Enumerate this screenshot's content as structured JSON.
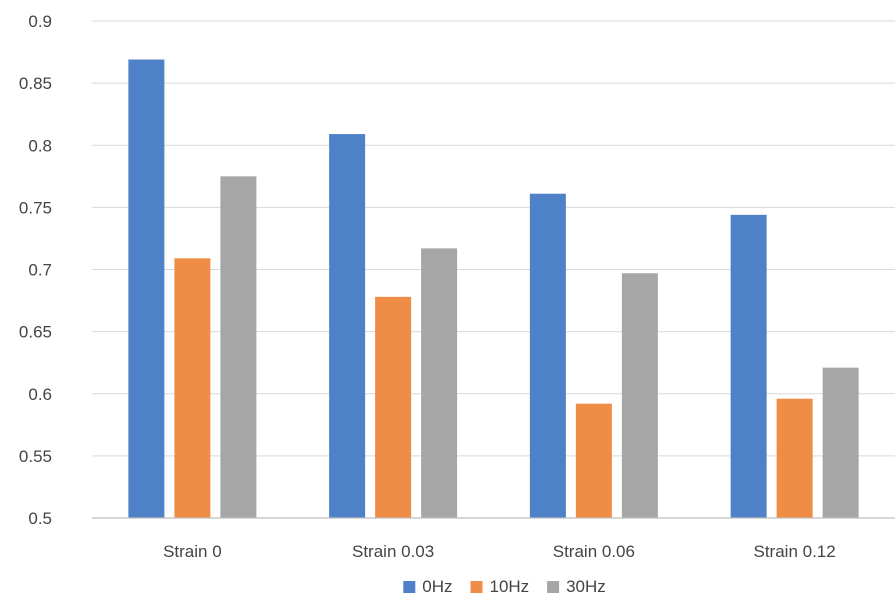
{
  "chart_data": {
    "type": "bar",
    "title": "",
    "xlabel": "",
    "ylabel": "",
    "categories": [
      "Strain 0",
      "Strain 0.03",
      "Strain 0.06",
      "Strain 0.12"
    ],
    "series": [
      {
        "name": "0Hz",
        "color": "#4f81c9",
        "values": [
          0.869,
          0.809,
          0.761,
          0.744
        ]
      },
      {
        "name": "10Hz",
        "color": "#ef8c46",
        "values": [
          0.709,
          0.678,
          0.592,
          0.596
        ]
      },
      {
        "name": "30Hz",
        "color": "#a6a6a6",
        "values": [
          0.775,
          0.717,
          0.697,
          0.621
        ]
      }
    ],
    "ylim": [
      0.5,
      0.9
    ],
    "yticks": [
      "0.5",
      "0.55",
      "0.6",
      "0.65",
      "0.7",
      "0.75",
      "0.8",
      "0.85",
      "0.9"
    ],
    "grid": true,
    "legend_position": "bottom"
  }
}
